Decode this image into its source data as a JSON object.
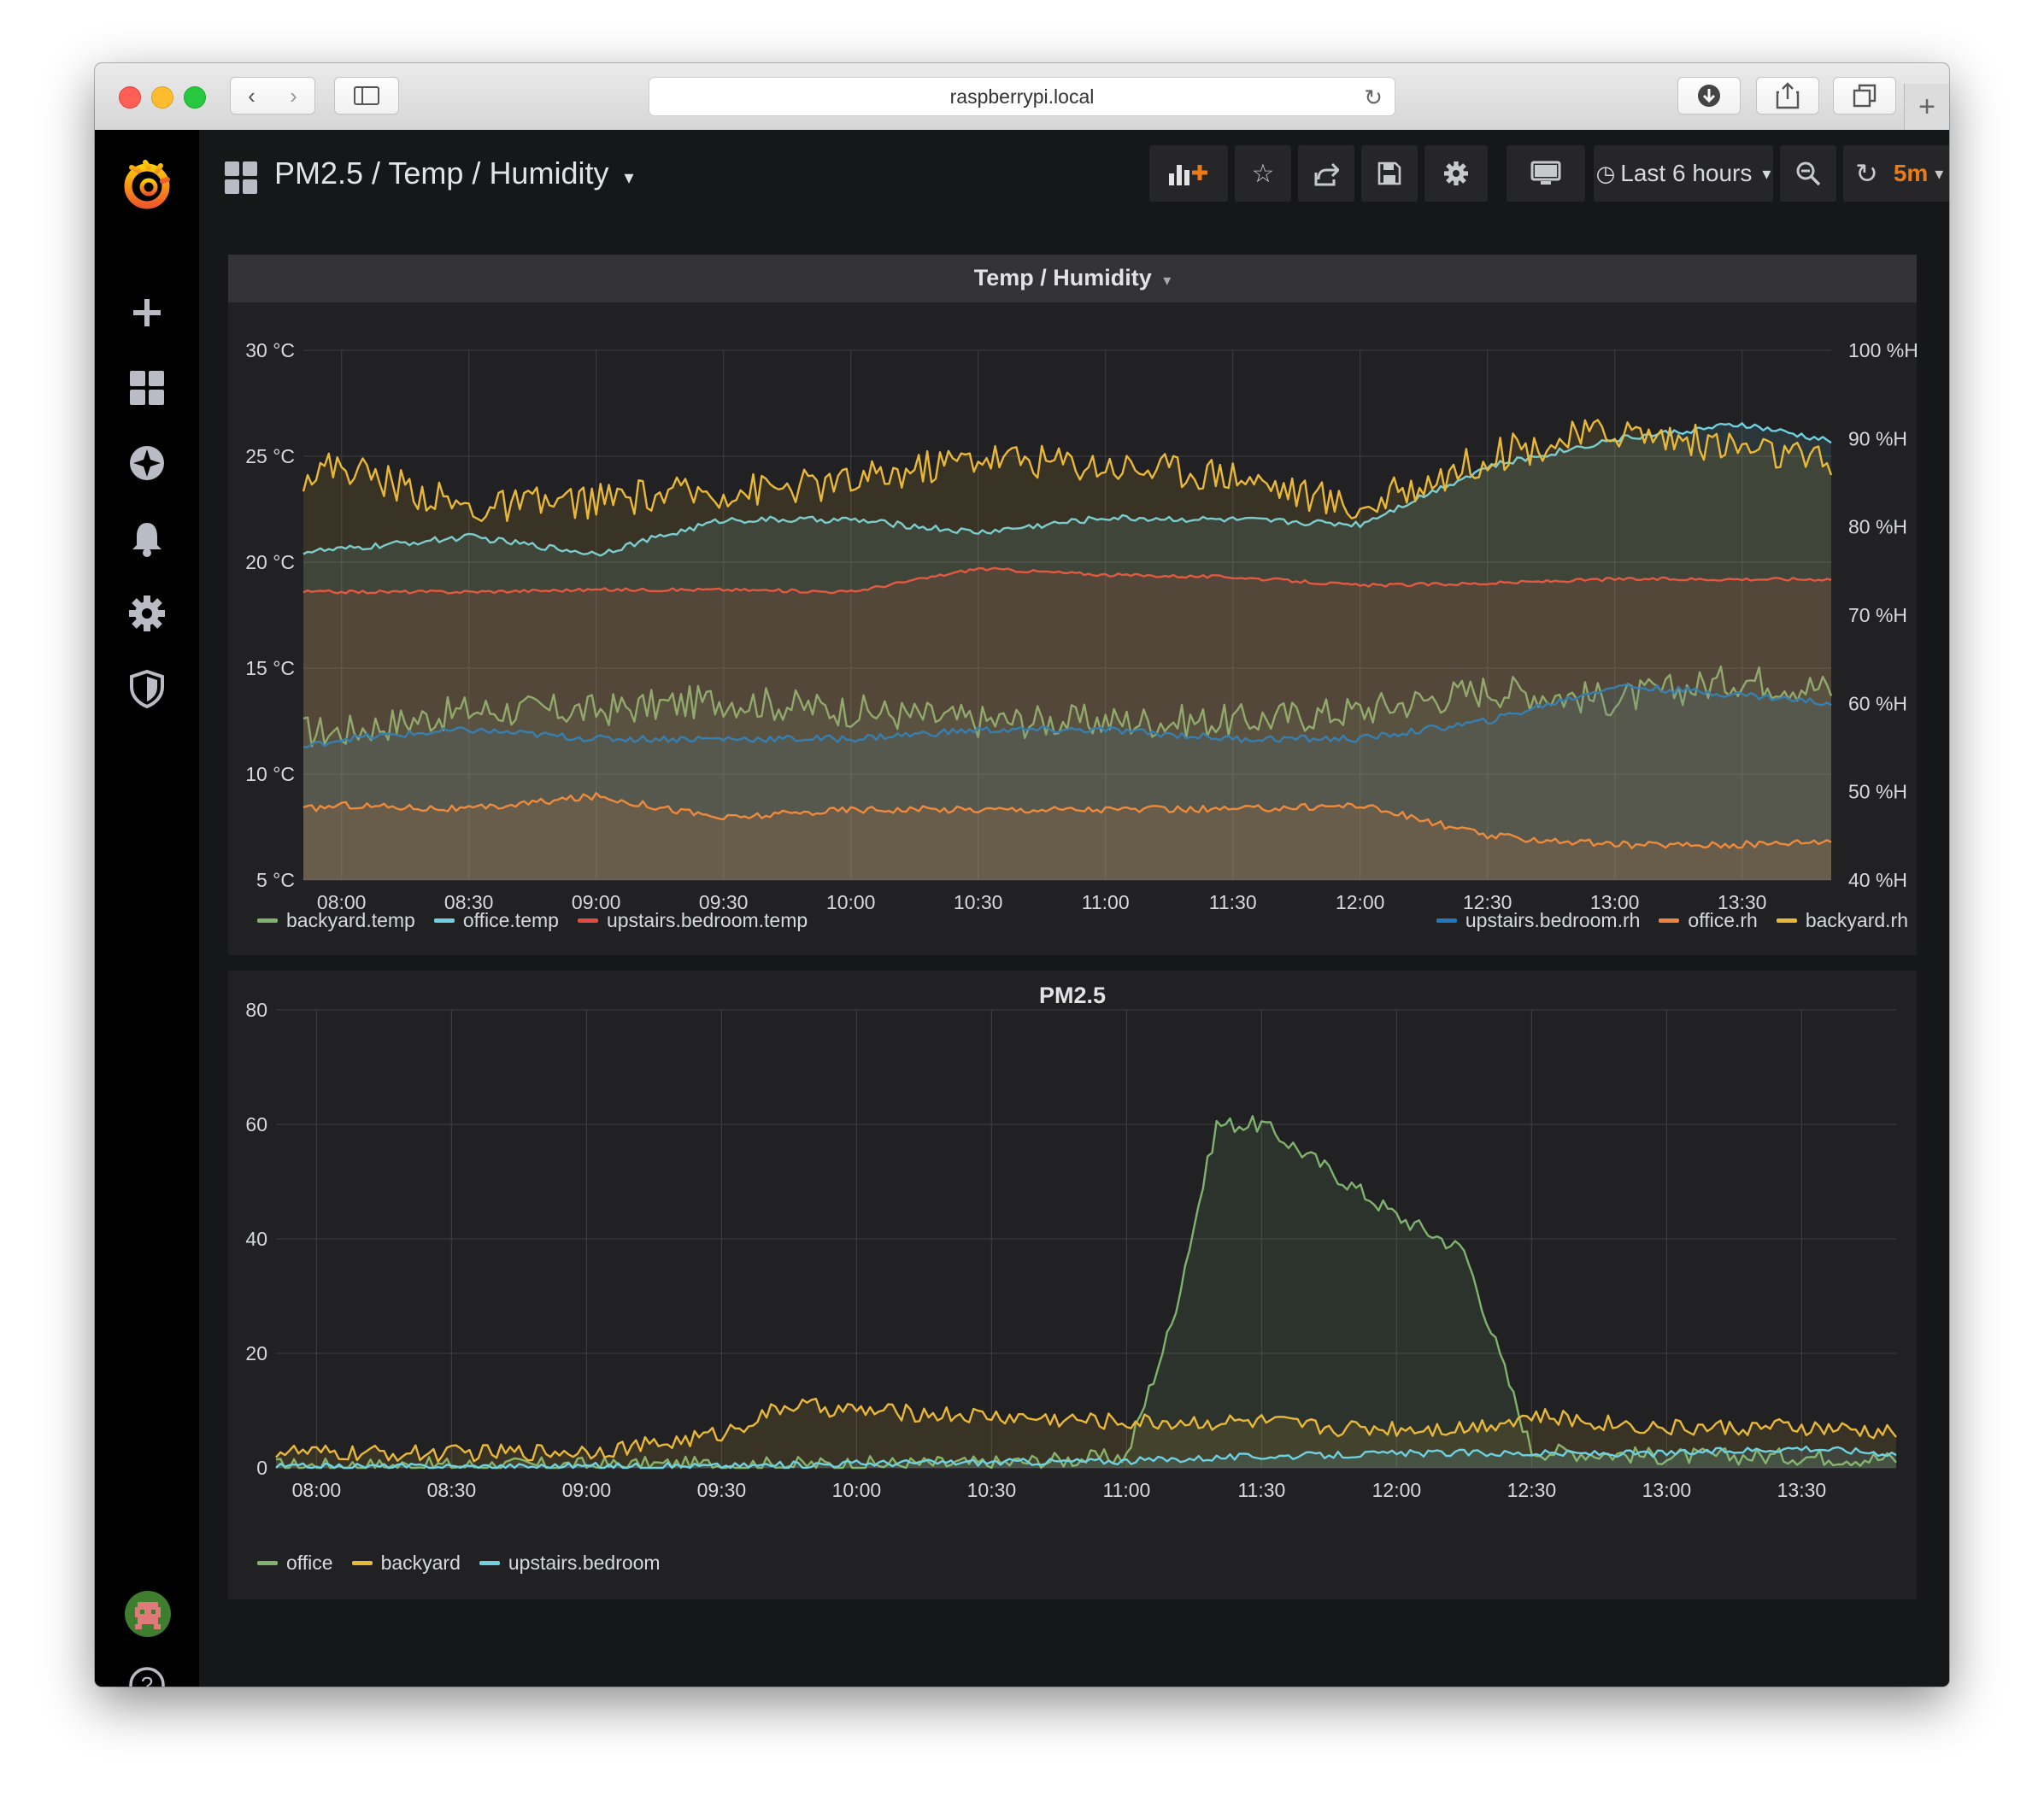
{
  "browser": {
    "url": "raspberrypi.local"
  },
  "dashboard": {
    "title": "PM2.5 / Temp / Humidity",
    "time_range": "Last 6 hours",
    "refresh": "5m"
  },
  "colors": {
    "green": "#7eb26d",
    "cyan": "#6ed0e0",
    "red": "#e24d42",
    "blue": "#1f78c1",
    "orange": "#ef843c",
    "yellow": "#eab839",
    "refresh_accent": "#eb7b18"
  },
  "sidebar": {
    "items": [
      "grafana-logo-icon",
      "plus-icon",
      "dashboards-icon",
      "explore-icon",
      "alert-bell-icon",
      "gear-icon",
      "shield-icon",
      "avatar",
      "help-icon"
    ]
  },
  "panels": {
    "temp": {
      "title": "Temp / Humidity",
      "legend_left": [
        "backyard.temp",
        "office.temp",
        "upstairs.bedroom.temp"
      ],
      "legend_right": [
        "upstairs.bedroom.rh",
        "office.rh",
        "backyard.rh"
      ]
    },
    "pm": {
      "title": "PM2.5",
      "legend": [
        "office",
        "backyard",
        "upstairs.bedroom"
      ]
    }
  },
  "chart_data": [
    {
      "type": "line",
      "title": "Temp / Humidity",
      "x": [
        "07:51",
        "08:00",
        "08:30",
        "09:00",
        "09:30",
        "10:00",
        "10:30",
        "11:00",
        "11:30",
        "12:00",
        "12:30",
        "13:00",
        "13:30",
        "13:51"
      ],
      "x_ticks": [
        "08:00",
        "08:30",
        "09:00",
        "09:30",
        "10:00",
        "10:30",
        "11:00",
        "11:30",
        "12:00",
        "12:30",
        "13:00",
        "13:30"
      ],
      "y_left": {
        "ticks": [
          "5 °C",
          "10 °C",
          "15 °C",
          "20 °C",
          "25 °C",
          "30 °C"
        ],
        "range": [
          5,
          30
        ],
        "unit": "°C"
      },
      "y_right": {
        "ticks": [
          "40 %H",
          "50 %H",
          "60 %H",
          "70 %H",
          "80 %H",
          "90 %H",
          "100 %H"
        ],
        "range": [
          40,
          100
        ],
        "unit": "%H"
      },
      "grid": true,
      "series": [
        {
          "name": "backyard.temp",
          "axis": "left",
          "color": "#7eb26d",
          "values": [
            12.0,
            12.0,
            13.0,
            13.0,
            13.5,
            13.0,
            12.5,
            12.5,
            12.5,
            13.0,
            14.0,
            13.5,
            14.5,
            14.0
          ]
        },
        {
          "name": "office.temp",
          "axis": "left",
          "color": "#6ed0e0",
          "values": [
            20.5,
            20.6,
            21.2,
            20.4,
            22.0,
            22.0,
            21.4,
            22.1,
            22.0,
            21.8,
            24.5,
            25.8,
            26.5,
            25.7
          ]
        },
        {
          "name": "upstairs.bedroom.temp",
          "axis": "left",
          "color": "#e24d42",
          "values": [
            18.6,
            18.6,
            18.6,
            18.7,
            18.7,
            18.6,
            19.7,
            19.4,
            19.3,
            18.9,
            19.0,
            19.2,
            19.2,
            19.2
          ]
        },
        {
          "name": "upstairs.bedroom.rh",
          "axis": "right",
          "color": "#1f78c1",
          "values": [
            55,
            56,
            57,
            56,
            56,
            56,
            57,
            57,
            56,
            56,
            58,
            62,
            61,
            60
          ]
        },
        {
          "name": "office.rh",
          "axis": "right",
          "color": "#ef843c",
          "values": [
            48,
            48.5,
            48,
            49.5,
            47,
            48,
            48,
            48,
            48,
            48.5,
            45,
            44,
            44,
            44.5
          ]
        },
        {
          "name": "backyard.rh",
          "axis": "right",
          "color": "#eab839",
          "values": [
            86,
            87,
            82,
            83,
            84,
            85,
            88,
            87,
            86,
            82,
            88,
            91,
            89,
            87
          ]
        }
      ]
    },
    {
      "type": "line",
      "title": "PM2.5",
      "x": [
        "07:51",
        "08:00",
        "08:30",
        "09:00",
        "09:15",
        "09:30",
        "09:45",
        "10:00",
        "10:30",
        "11:00",
        "11:10",
        "11:20",
        "11:30",
        "11:45",
        "12:00",
        "12:15",
        "12:30",
        "13:00",
        "13:30",
        "13:51"
      ],
      "x_ticks": [
        "08:00",
        "08:30",
        "09:00",
        "09:30",
        "10:00",
        "10:30",
        "11:00",
        "11:30",
        "12:00",
        "12:30",
        "13:00",
        "13:30"
      ],
      "y_ticks": [
        "0",
        "20",
        "40",
        "60",
        "80"
      ],
      "ylim": [
        0,
        80
      ],
      "grid": true,
      "series": [
        {
          "name": "office",
          "color": "#7eb26d",
          "values": [
            0.3,
            0.3,
            0.4,
            0.4,
            0.5,
            0.5,
            0.5,
            0.6,
            0.7,
            2,
            25,
            60,
            60,
            52,
            44,
            38,
            3,
            2,
            2,
            1.5
          ]
        },
        {
          "name": "backyard",
          "color": "#eab839",
          "values": [
            3,
            2.5,
            2.5,
            3,
            4,
            6,
            11,
            10,
            9,
            8,
            8,
            8,
            8,
            7,
            7,
            7,
            9,
            7,
            7,
            6
          ]
        },
        {
          "name": "upstairs.bedroom",
          "color": "#6ed0e0",
          "values": [
            0.2,
            0.2,
            0.2,
            0.3,
            0.3,
            0.3,
            0.5,
            0.8,
            1,
            1.2,
            1.5,
            1.8,
            2,
            2.2,
            2.5,
            2.6,
            2.5,
            2.5,
            3.5,
            2.5
          ]
        }
      ]
    }
  ]
}
